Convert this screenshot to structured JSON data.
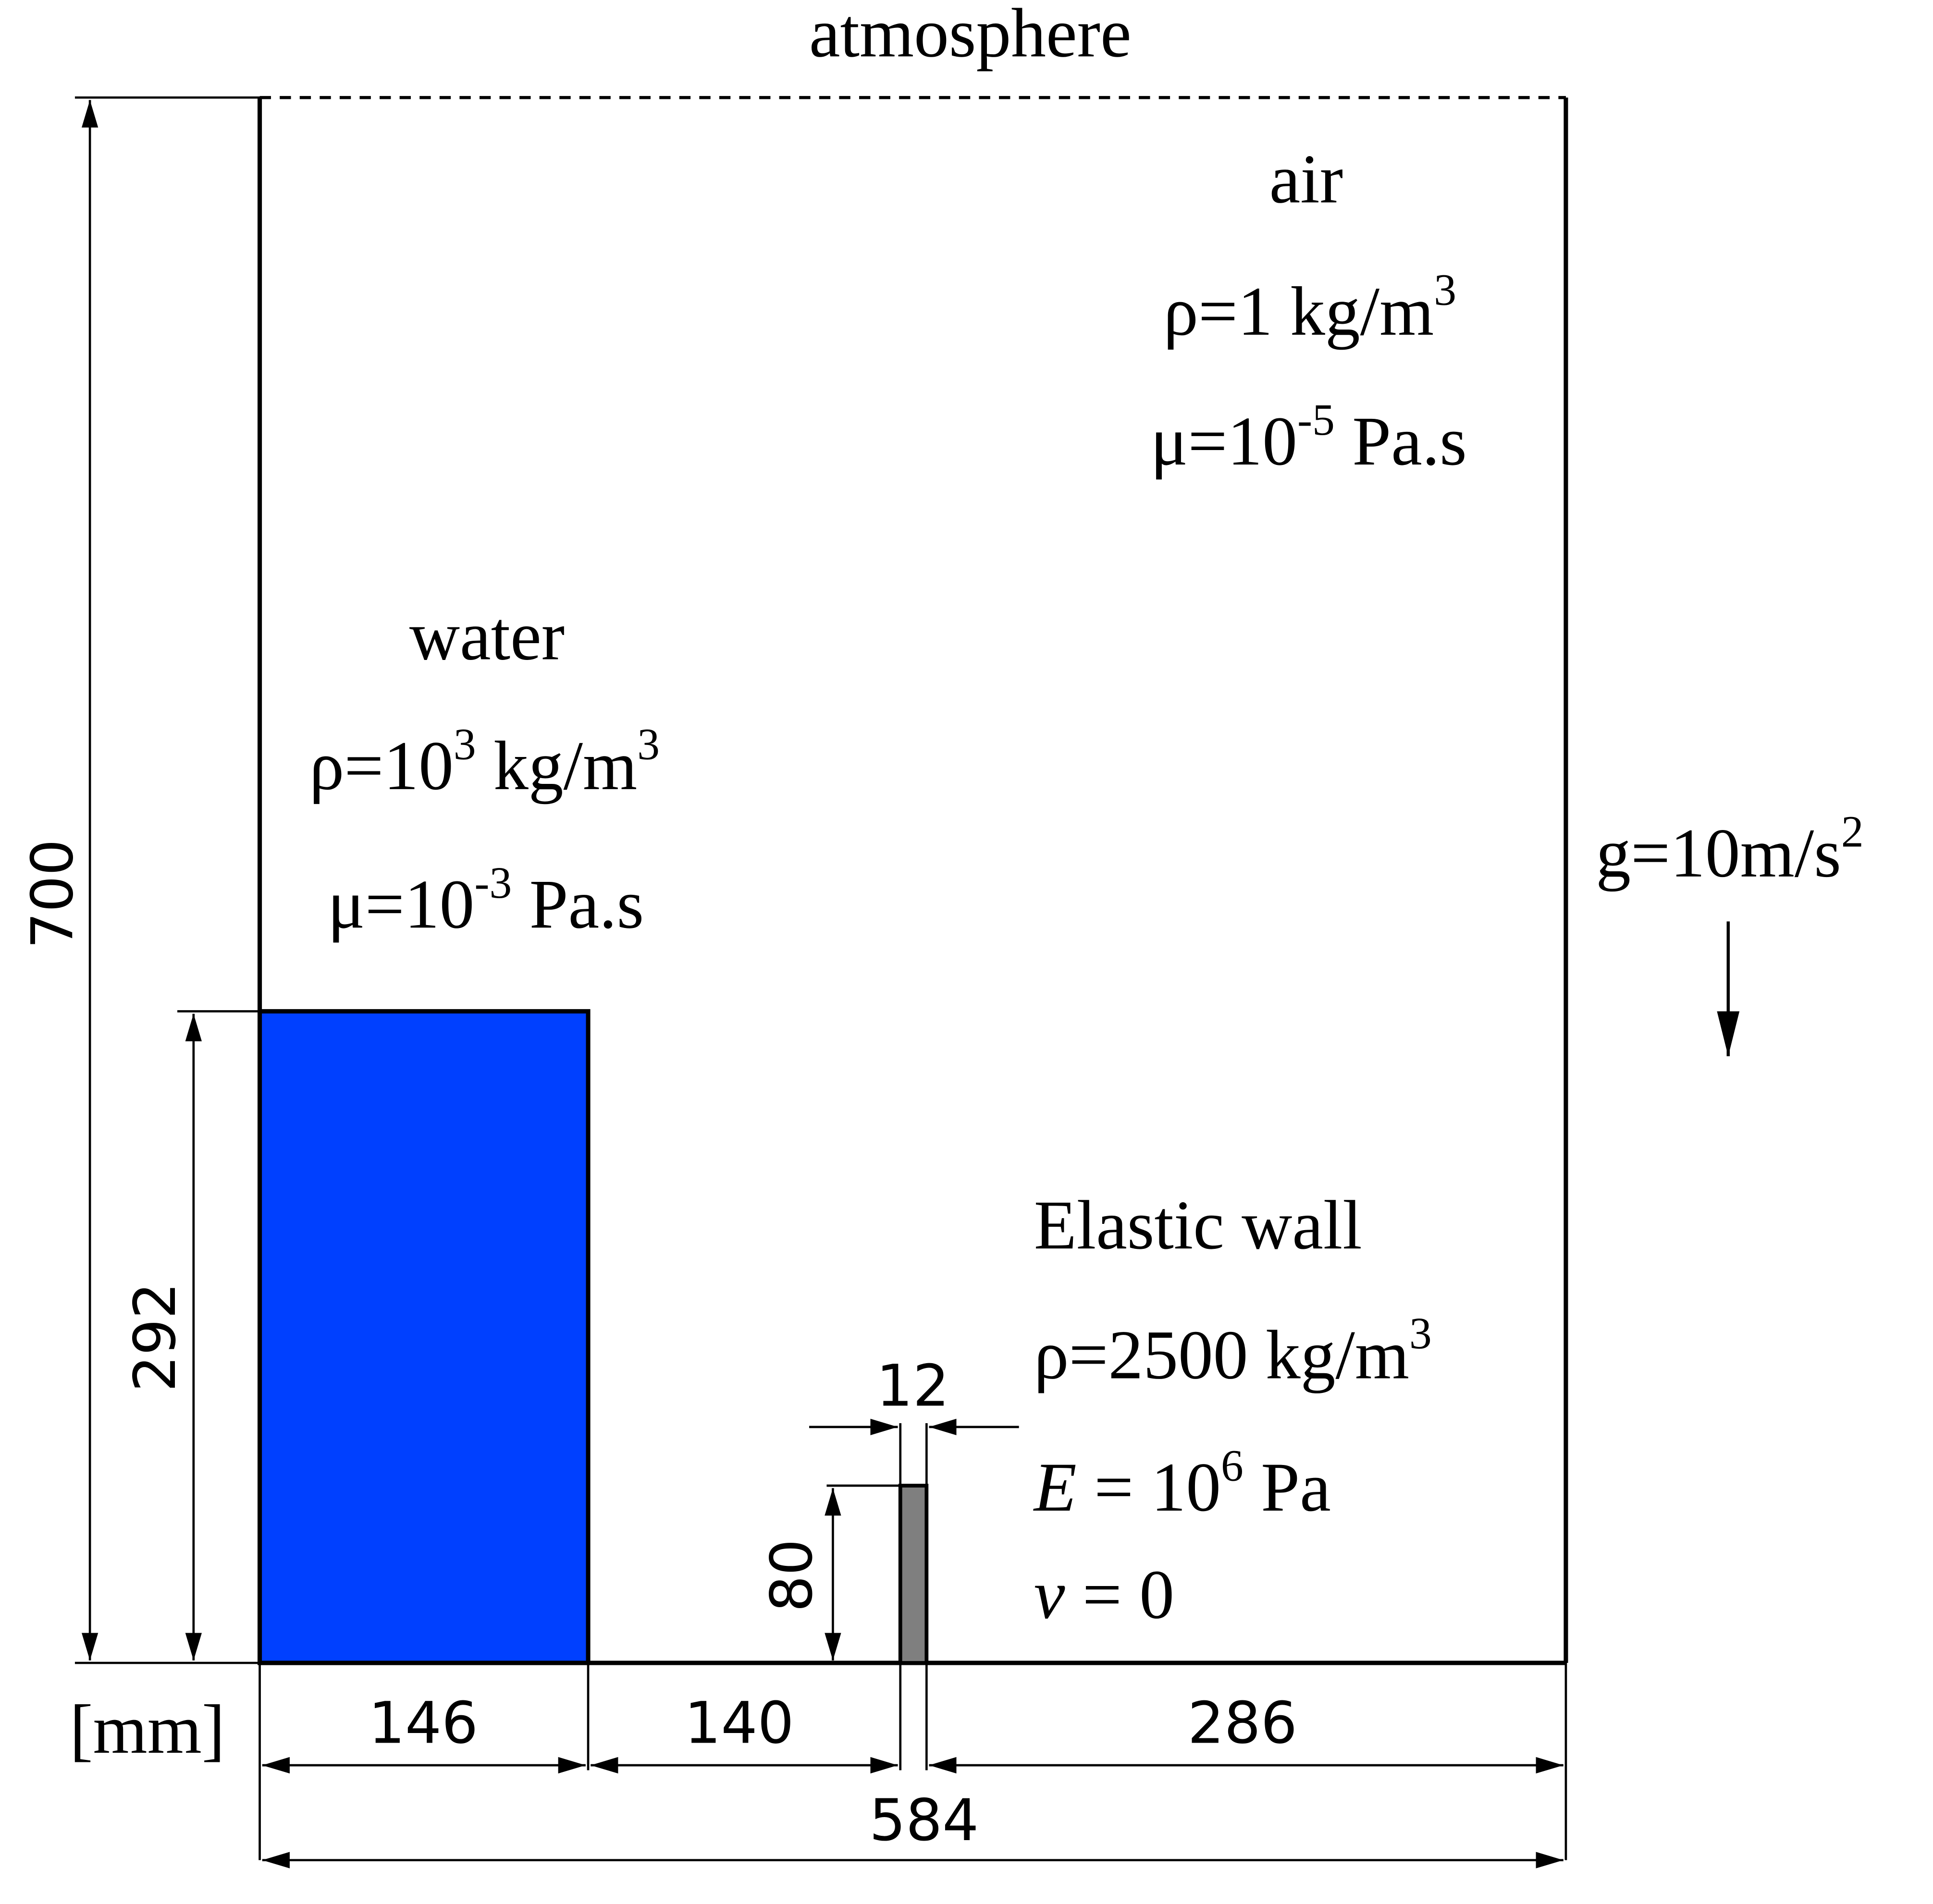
{
  "colors": {
    "water": "#0040ff",
    "elastic_wall": "#7f7f7f",
    "lines": "#000000"
  },
  "labels": {
    "atmosphere": "atmosphere",
    "air": {
      "name": "air",
      "rho_prefix": "ρ=1 kg/m",
      "rho_exp": "3",
      "mu_prefix": "μ=10",
      "mu_exp": "-5",
      "mu_suffix": " Pa.s"
    },
    "water": {
      "name": "water",
      "rho_prefix": "ρ=10",
      "rho_exp1": "3",
      "rho_mid": " kg/m",
      "rho_exp2": "3",
      "mu_prefix": "μ=10",
      "mu_exp": "-3",
      "mu_suffix": " Pa.s"
    },
    "elastic": {
      "name": "Elastic wall",
      "rho_prefix": "ρ=2500 kg/m",
      "rho_exp": "3",
      "E_sym": "E",
      "E_eq": " = 10",
      "E_exp": "6",
      "E_unit": " Pa",
      "nu_sym": "ν",
      "nu_eq": " = 0"
    },
    "gravity": {
      "prefix": "g=10m/s",
      "exp": "2"
    },
    "unit": "[mm]"
  },
  "dimensions": {
    "height_total": "700",
    "water_height": "292",
    "wall_height": "80",
    "wall_width": "12",
    "water_width": "146",
    "gap": "140",
    "right_width": "286",
    "total_width": "584"
  }
}
